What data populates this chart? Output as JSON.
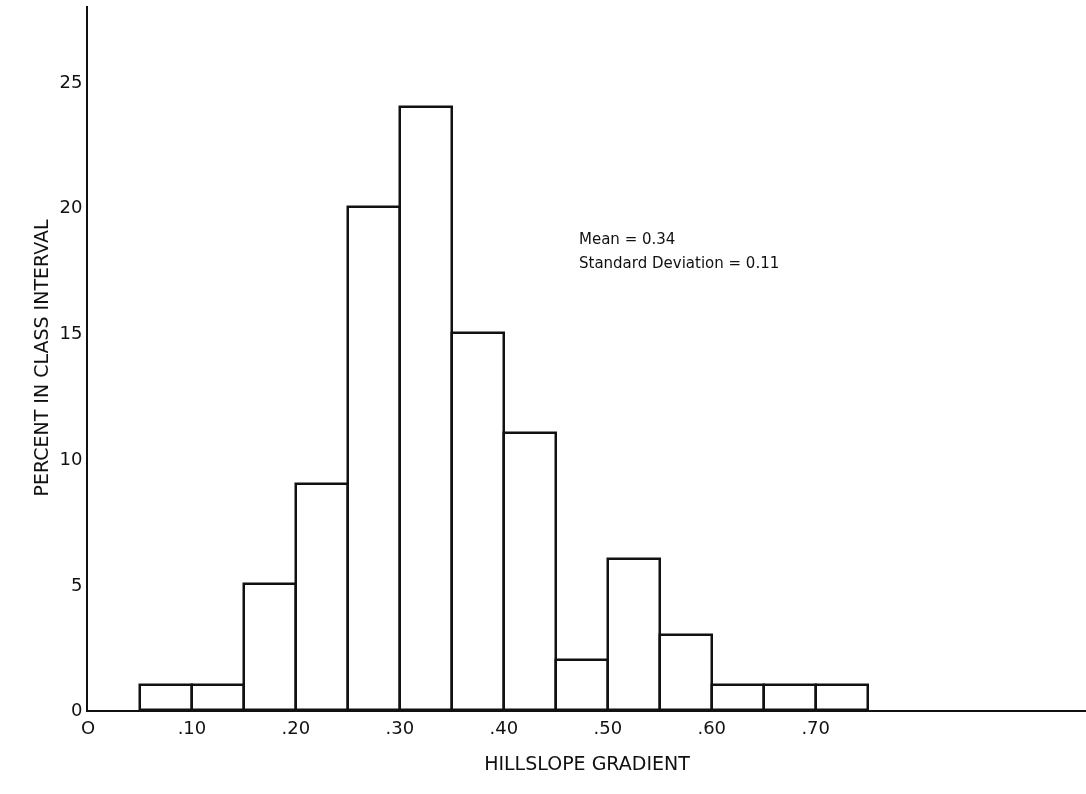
{
  "chart_data": {
    "type": "histogram",
    "xlabel": "HILLSLOPE GRADIENT",
    "ylabel": "PERCENT IN CLASS INTERVAL",
    "bins": [
      0.05,
      0.1,
      0.15,
      0.2,
      0.25,
      0.3,
      0.35,
      0.4,
      0.45,
      0.5,
      0.55,
      0.6,
      0.65,
      0.7,
      0.75
    ],
    "values": [
      1,
      1,
      5,
      9,
      20,
      24,
      15,
      11,
      2,
      6,
      3,
      1,
      1,
      1
    ],
    "color": "#ffffff",
    "xlim": [
      0,
      0.96
    ],
    "xticks": [
      {
        "value": 0,
        "label": "O"
      },
      {
        "value": 0.1,
        "label": ".10"
      },
      {
        "value": 0.2,
        "label": ".20"
      },
      {
        "value": 0.3,
        "label": ".30"
      },
      {
        "value": 0.4,
        "label": ".40"
      },
      {
        "value": 0.5,
        "label": ".50"
      },
      {
        "value": 0.6,
        "label": ".60"
      },
      {
        "value": 0.7,
        "label": ".70"
      }
    ],
    "ylim": [
      0,
      28
    ],
    "yticks": [
      0,
      5,
      10,
      15,
      20,
      25
    ],
    "grid": false,
    "annotations": [
      "Mean = 0.34",
      "Standard Deviation = 0.11"
    ]
  }
}
